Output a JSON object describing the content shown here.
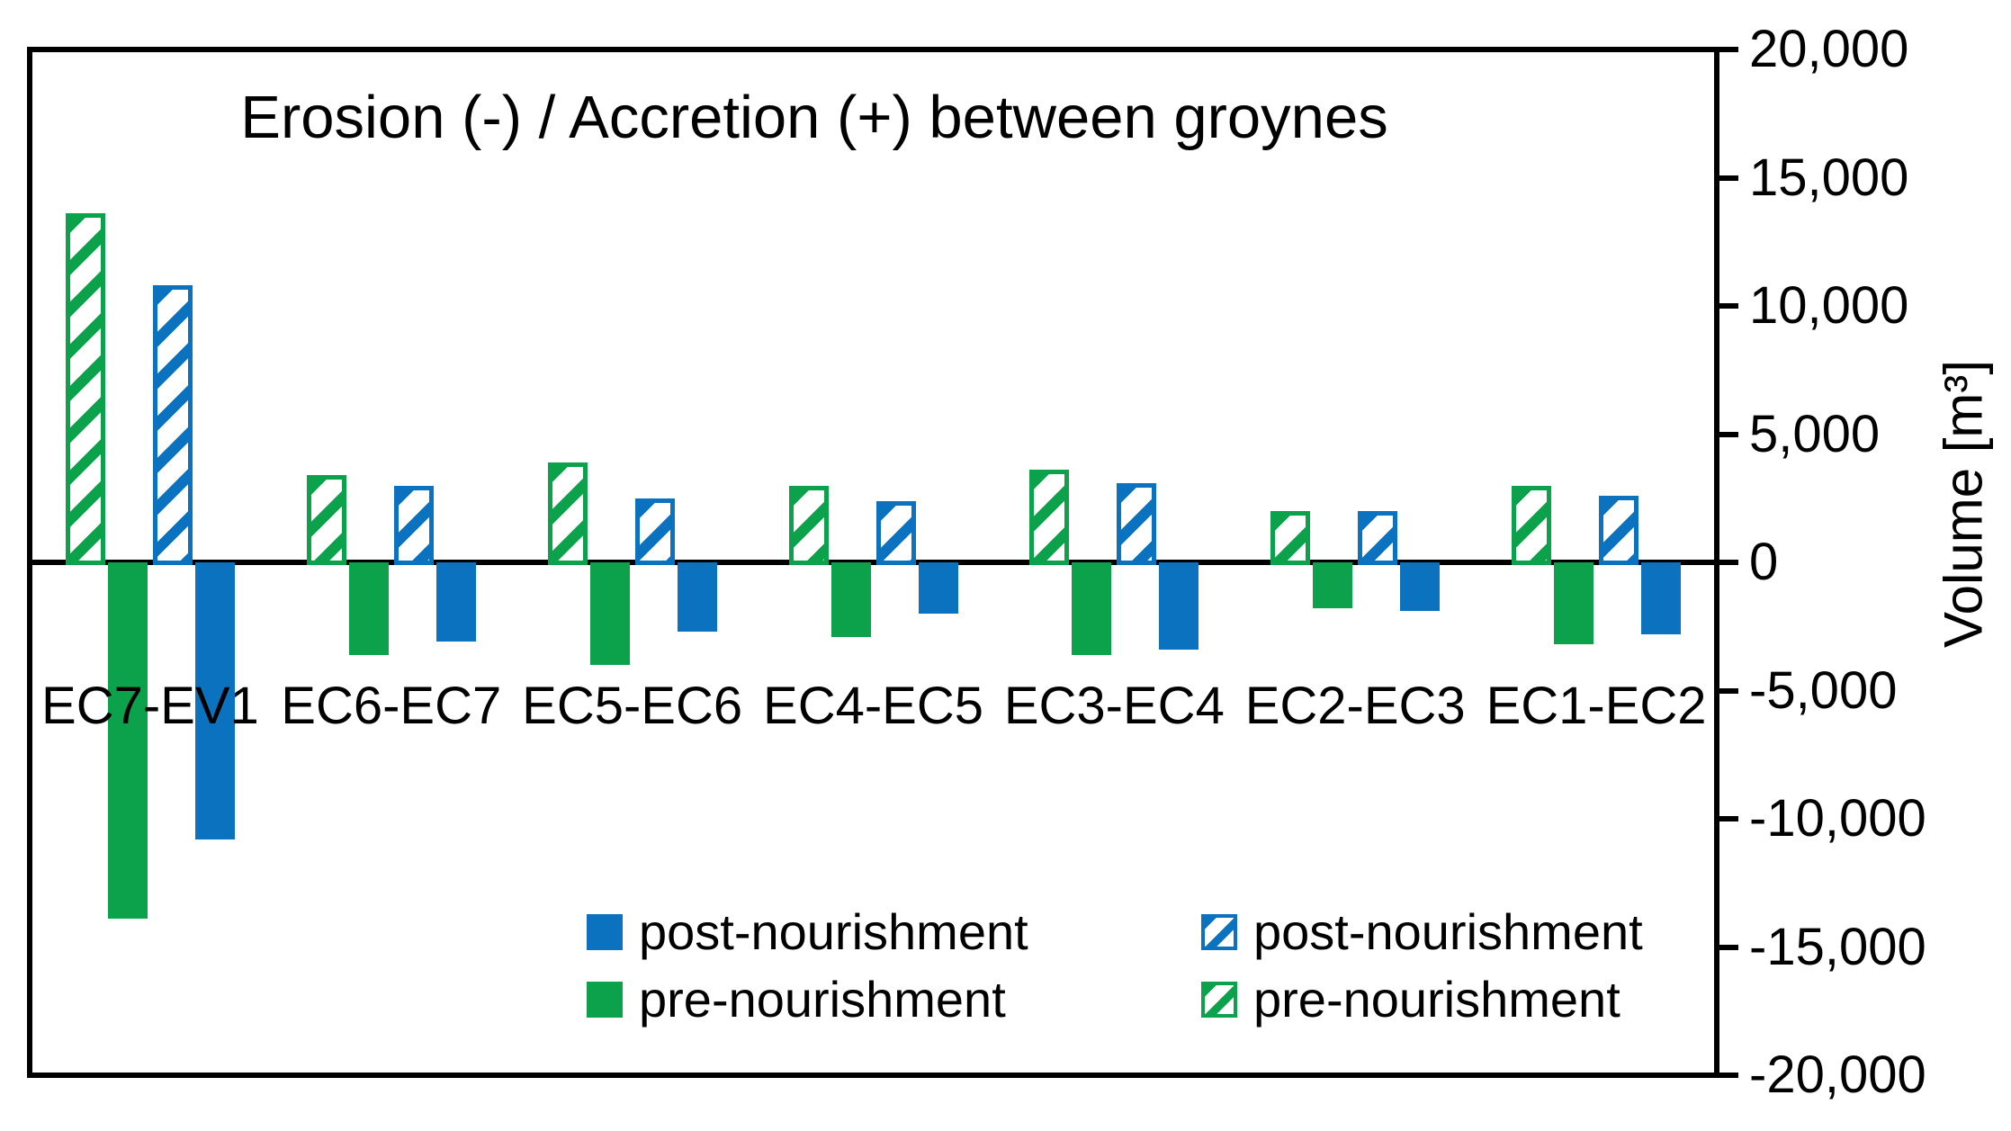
{
  "chart_data": {
    "type": "bar",
    "title": "Erosion (-) / Accretion (+) between groynes",
    "ylabel": "Volume [m³]",
    "ylim": [
      -20000,
      20000
    ],
    "ytick_step": 5000,
    "ytick_labels": [
      "20,000",
      "15,000",
      "10,000",
      "5,000",
      "0",
      "-5,000",
      "-10,000",
      "-15,000",
      "-20,000"
    ],
    "grid": false,
    "legend_position": "bottom-inside",
    "categories": [
      "EC7-EV1",
      "EC6-EC7",
      "EC5-EC6",
      "EC4-EC5",
      "EC3-EC4",
      "EC2-EC3",
      "EC1-EC2"
    ],
    "series": [
      {
        "name": "pre-nourishment",
        "style": "hatched",
        "color": "#0CA24B",
        "values": [
          13600,
          3400,
          3900,
          3000,
          3600,
          2000,
          3000
        ]
      },
      {
        "name": "pre-nourishment",
        "style": "solid",
        "color": "#0CA24B",
        "values": [
          -13900,
          -3600,
          -4000,
          -2900,
          -3600,
          -1800,
          -3200
        ]
      },
      {
        "name": "post-nourishment",
        "style": "hatched",
        "color": "#0B72C0",
        "values": [
          10800,
          3000,
          2500,
          2400,
          3100,
          2000,
          2600
        ]
      },
      {
        "name": "post-nourishment",
        "style": "solid",
        "color": "#0B72C0",
        "values": [
          -10800,
          -3100,
          -2700,
          -2000,
          -3400,
          -1900,
          -2800
        ]
      }
    ],
    "legend": [
      {
        "label": "post-nourishment",
        "style": "solid",
        "color": "#0B72C0"
      },
      {
        "label": "pre-nourishment",
        "style": "solid",
        "color": "#0CA24B"
      },
      {
        "label": "post-nourishment",
        "style": "hatched",
        "color": "#0B72C0"
      },
      {
        "label": "pre-nourishment",
        "style": "hatched",
        "color": "#0CA24B"
      }
    ],
    "colors": {
      "axis": "#000000",
      "background": "#FFFFFF"
    }
  }
}
